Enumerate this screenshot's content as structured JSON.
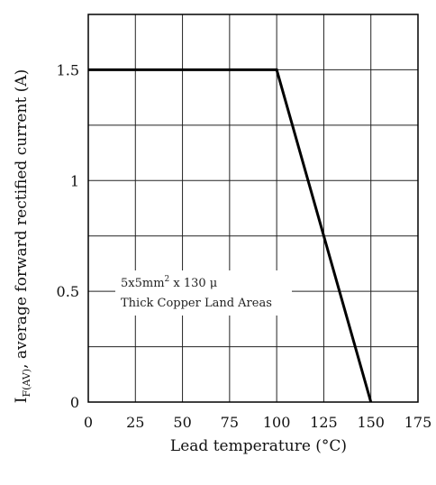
{
  "chart_data": {
    "type": "line",
    "title": "",
    "xlabel": "Lead temperature (°C)",
    "ylabel": {
      "prefix": "I",
      "subscript": "F(AV)",
      "rest": ", average forward rectified current (A)"
    },
    "xlim": [
      0,
      175
    ],
    "ylim": [
      0,
      1.75
    ],
    "x_ticks": [
      "0",
      "25",
      "50",
      "75",
      "100",
      "125",
      "150",
      "175"
    ],
    "y_ticks": [
      {
        "value": 0,
        "label": "0"
      },
      {
        "value": 0.5,
        "label": "0.5"
      },
      {
        "value": 1,
        "label": "1"
      },
      {
        "value": 1.5,
        "label": "1.5"
      }
    ],
    "grid_x": [
      0,
      25,
      50,
      75,
      100,
      125,
      150,
      175
    ],
    "grid_y": [
      0,
      0.25,
      0.5,
      0.75,
      1,
      1.25,
      1.5,
      1.75
    ],
    "grid": true,
    "series": [
      {
        "points": [
          [
            0,
            1.5
          ],
          [
            100,
            1.5
          ],
          [
            150,
            0
          ]
        ]
      }
    ],
    "annotation": {
      "line1_main": "5x5mm",
      "line1_sup": "2",
      "line1_rest": " x 130 μ",
      "line2": "Thick Copper Land Areas",
      "x": 2.5,
      "y": 0.55
    },
    "colors": {
      "line": "#000000",
      "grid": "#222222"
    }
  }
}
